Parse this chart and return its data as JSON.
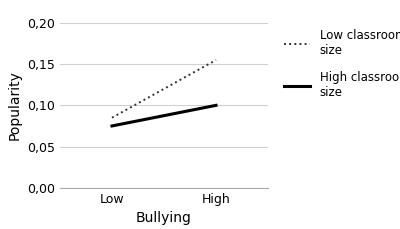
{
  "low_classroom": [
    0.085,
    0.155
  ],
  "high_classroom": [
    0.075,
    0.1
  ],
  "x_positions": [
    0,
    1
  ],
  "x_labels": [
    "Low",
    "High"
  ],
  "x_label": "Bullying",
  "y_label": "Popularity",
  "ylim": [
    0.0,
    0.2
  ],
  "xlim": [
    -0.5,
    1.5
  ],
  "yticks": [
    0.0,
    0.05,
    0.1,
    0.15,
    0.2
  ],
  "ytick_labels": [
    "0,00",
    "0,05",
    "0,10",
    "0,15",
    "0,20"
  ],
  "legend_low": "Low classroom\nsize",
  "legend_high": "High classroom\nsize",
  "background_color": "#ffffff",
  "grid_color": "#d0d0d0",
  "line_color_low": "#333333",
  "line_color_high": "#000000",
  "dotted_linewidth": 1.4,
  "solid_linewidth": 2.2,
  "label_fontsize": 10,
  "tick_fontsize": 9,
  "legend_fontsize": 8.5
}
